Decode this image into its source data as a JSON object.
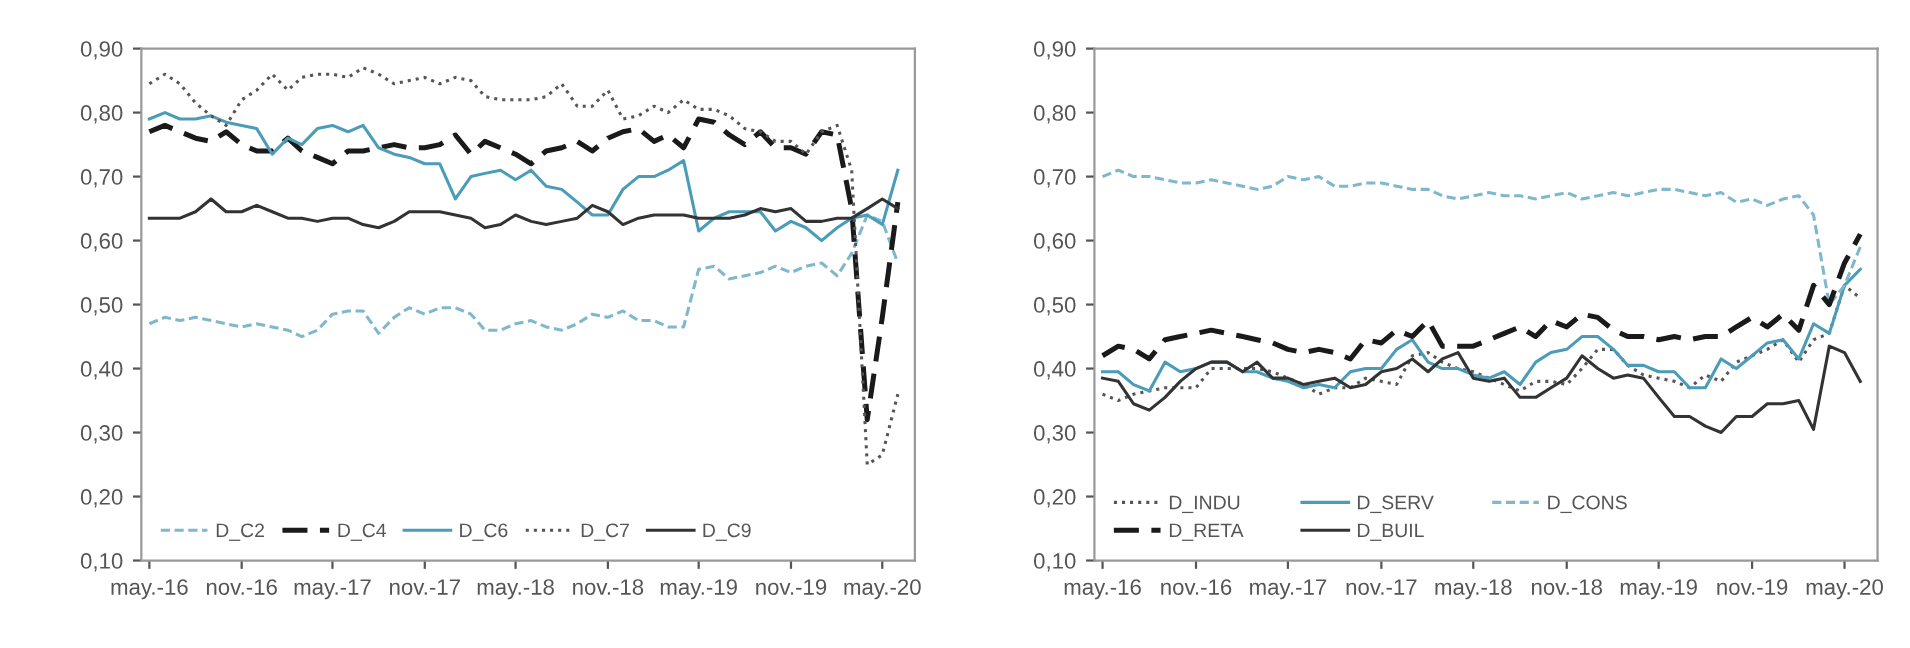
{
  "chart_data": [
    {
      "type": "line",
      "x": [
        "2016-05",
        "2016-06",
        "2016-07",
        "2016-08",
        "2016-09",
        "2016-10",
        "2016-11",
        "2016-12",
        "2017-01",
        "2017-02",
        "2017-03",
        "2017-04",
        "2017-05",
        "2017-06",
        "2017-07",
        "2017-08",
        "2017-09",
        "2017-10",
        "2017-11",
        "2017-12",
        "2018-01",
        "2018-02",
        "2018-03",
        "2018-04",
        "2018-05",
        "2018-06",
        "2018-07",
        "2018-08",
        "2018-09",
        "2018-10",
        "2018-11",
        "2018-12",
        "2019-01",
        "2019-02",
        "2019-03",
        "2019-04",
        "2019-05",
        "2019-06",
        "2019-07",
        "2019-08",
        "2019-09",
        "2019-10",
        "2019-11",
        "2019-12",
        "2020-01",
        "2020-02",
        "2020-03",
        "2020-04",
        "2020-05",
        "2020-06"
      ],
      "xlim": [
        "2016-04-15",
        "2020-07-05"
      ],
      "xticks": [
        {
          "value": "2016-05",
          "label": "may.-16"
        },
        {
          "value": "2016-11",
          "label": "nov.-16"
        },
        {
          "value": "2017-05",
          "label": "may.-17"
        },
        {
          "value": "2017-11",
          "label": "nov.-17"
        },
        {
          "value": "2018-05",
          "label": "may.-18"
        },
        {
          "value": "2018-11",
          "label": "nov.-18"
        },
        {
          "value": "2019-05",
          "label": "may.-19"
        },
        {
          "value": "2019-11",
          "label": "nov.-19"
        },
        {
          "value": "2020-05",
          "label": "may.-20"
        }
      ],
      "ylim": [
        0.1,
        0.9
      ],
      "yticks": [
        {
          "value": 0.1,
          "label": "0,10"
        },
        {
          "value": 0.2,
          "label": "0,20"
        },
        {
          "value": 0.3,
          "label": "0,30"
        },
        {
          "value": 0.4,
          "label": "0,40"
        },
        {
          "value": 0.5,
          "label": "0,50"
        },
        {
          "value": 0.6,
          "label": "0,60"
        },
        {
          "value": 0.7,
          "label": "0,70"
        },
        {
          "value": 0.8,
          "label": "0,80"
        },
        {
          "value": 0.9,
          "label": "0,90"
        }
      ],
      "grid": false,
      "legend": "bottom left",
      "series": [
        {
          "name": "D_C2",
          "color": "#7fb8cc",
          "line_style": "dashed",
          "values": [
            0.47,
            0.48,
            0.475,
            0.48,
            0.475,
            0.47,
            0.465,
            0.47,
            0.465,
            0.46,
            0.45,
            0.46,
            0.485,
            0.49,
            0.49,
            0.455,
            0.48,
            0.495,
            0.485,
            0.495,
            0.495,
            0.485,
            0.46,
            0.46,
            0.47,
            0.475,
            0.465,
            0.46,
            0.47,
            0.485,
            0.48,
            0.49,
            0.475,
            0.475,
            0.465,
            0.465,
            0.555,
            0.56,
            0.54,
            0.545,
            0.55,
            0.56,
            0.55,
            0.56,
            0.565,
            0.545,
            0.58,
            0.64,
            0.63,
            0.565
          ]
        },
        {
          "name": "D_C4",
          "color": "#1a1a1a",
          "line_style": "dashed",
          "values": [
            0.77,
            0.78,
            0.77,
            0.76,
            0.755,
            0.77,
            0.75,
            0.74,
            0.74,
            0.76,
            0.74,
            0.73,
            0.72,
            0.74,
            0.74,
            0.745,
            0.75,
            0.745,
            0.745,
            0.75,
            0.765,
            0.735,
            0.755,
            0.745,
            0.735,
            0.72,
            0.74,
            0.745,
            0.755,
            0.74,
            0.76,
            0.77,
            0.775,
            0.755,
            0.765,
            0.745,
            0.79,
            0.785,
            0.765,
            0.75,
            0.77,
            0.745,
            0.745,
            0.735,
            0.77,
            0.765,
            0.65,
            0.32,
            0.48,
            0.66
          ]
        },
        {
          "name": "D_C6",
          "color": "#4a9cb8",
          "line_style": "solid",
          "values": [
            0.79,
            0.8,
            0.79,
            0.79,
            0.795,
            0.785,
            0.78,
            0.775,
            0.735,
            0.76,
            0.75,
            0.775,
            0.78,
            0.77,
            0.78,
            0.745,
            0.735,
            0.73,
            0.72,
            0.72,
            0.665,
            0.7,
            0.705,
            0.71,
            0.695,
            0.71,
            0.685,
            0.68,
            0.66,
            0.64,
            0.64,
            0.68,
            0.7,
            0.7,
            0.71,
            0.725,
            0.615,
            0.635,
            0.645,
            0.645,
            0.645,
            0.615,
            0.63,
            0.62,
            0.6,
            0.62,
            0.635,
            0.64,
            0.625,
            0.71
          ]
        },
        {
          "name": "D_C7",
          "color": "#555555",
          "line_style": "dotted",
          "values": [
            0.845,
            0.86,
            0.845,
            0.815,
            0.795,
            0.78,
            0.82,
            0.835,
            0.86,
            0.835,
            0.855,
            0.86,
            0.86,
            0.855,
            0.87,
            0.86,
            0.845,
            0.85,
            0.855,
            0.845,
            0.855,
            0.85,
            0.825,
            0.82,
            0.82,
            0.82,
            0.825,
            0.845,
            0.81,
            0.81,
            0.835,
            0.79,
            0.795,
            0.81,
            0.8,
            0.82,
            0.805,
            0.805,
            0.795,
            0.775,
            0.77,
            0.755,
            0.755,
            0.735,
            0.77,
            0.78,
            0.71,
            0.25,
            0.265,
            0.36
          ]
        },
        {
          "name": "D_C9",
          "color": "#333333",
          "line_style": "solid",
          "values": [
            0.635,
            0.635,
            0.635,
            0.645,
            0.665,
            0.645,
            0.645,
            0.655,
            0.645,
            0.635,
            0.635,
            0.63,
            0.635,
            0.635,
            0.625,
            0.62,
            0.63,
            0.645,
            0.645,
            0.645,
            0.64,
            0.635,
            0.62,
            0.625,
            0.64,
            0.63,
            0.625,
            0.63,
            0.635,
            0.655,
            0.645,
            0.625,
            0.635,
            0.64,
            0.64,
            0.64,
            0.635,
            0.635,
            0.635,
            0.64,
            0.65,
            0.645,
            0.65,
            0.63,
            0.63,
            0.635,
            0.635,
            0.65,
            0.665,
            0.65
          ]
        }
      ]
    },
    {
      "type": "line",
      "x": [
        "2016-05",
        "2016-06",
        "2016-07",
        "2016-08",
        "2016-09",
        "2016-10",
        "2016-11",
        "2016-12",
        "2017-01",
        "2017-02",
        "2017-03",
        "2017-04",
        "2017-05",
        "2017-06",
        "2017-07",
        "2017-08",
        "2017-09",
        "2017-10",
        "2017-11",
        "2017-12",
        "2018-01",
        "2018-02",
        "2018-03",
        "2018-04",
        "2018-05",
        "2018-06",
        "2018-07",
        "2018-08",
        "2018-09",
        "2018-10",
        "2018-11",
        "2018-12",
        "2019-01",
        "2019-02",
        "2019-03",
        "2019-04",
        "2019-05",
        "2019-06",
        "2019-07",
        "2019-08",
        "2019-09",
        "2019-10",
        "2019-11",
        "2019-12",
        "2020-01",
        "2020-02",
        "2020-03",
        "2020-04",
        "2020-05",
        "2020-06"
      ],
      "xlim": [
        "2016-04-15",
        "2020-07-05"
      ],
      "xticks": [
        {
          "value": "2016-05",
          "label": "may.-16"
        },
        {
          "value": "2016-11",
          "label": "nov.-16"
        },
        {
          "value": "2017-05",
          "label": "may.-17"
        },
        {
          "value": "2017-11",
          "label": "nov.-17"
        },
        {
          "value": "2018-05",
          "label": "may.-18"
        },
        {
          "value": "2018-11",
          "label": "nov.-18"
        },
        {
          "value": "2019-05",
          "label": "may.-19"
        },
        {
          "value": "2019-11",
          "label": "nov.-19"
        },
        {
          "value": "2020-05",
          "label": "may.-20"
        }
      ],
      "ylim": [
        0.1,
        0.9
      ],
      "yticks": [
        {
          "value": 0.1,
          "label": "0,10"
        },
        {
          "value": 0.2,
          "label": "0,20"
        },
        {
          "value": 0.3,
          "label": "0,30"
        },
        {
          "value": 0.4,
          "label": "0,40"
        },
        {
          "value": 0.5,
          "label": "0,50"
        },
        {
          "value": 0.6,
          "label": "0,60"
        },
        {
          "value": 0.7,
          "label": "0,70"
        },
        {
          "value": 0.8,
          "label": "0,80"
        },
        {
          "value": 0.9,
          "label": "0,90"
        }
      ],
      "grid": false,
      "legend": "bottom left",
      "series": [
        {
          "name": "D_INDU",
          "color": "#555555",
          "line_style": "dotted",
          "values": [
            0.36,
            0.35,
            0.36,
            0.365,
            0.37,
            0.37,
            0.37,
            0.4,
            0.4,
            0.4,
            0.4,
            0.395,
            0.385,
            0.375,
            0.36,
            0.37,
            0.37,
            0.385,
            0.38,
            0.375,
            0.42,
            0.425,
            0.41,
            0.4,
            0.395,
            0.385,
            0.375,
            0.365,
            0.38,
            0.38,
            0.375,
            0.4,
            0.43,
            0.43,
            0.405,
            0.39,
            0.385,
            0.38,
            0.37,
            0.39,
            0.38,
            0.41,
            0.42,
            0.43,
            0.445,
            0.41,
            0.445,
            0.455,
            0.53,
            0.51
          ]
        },
        {
          "name": "D_SERV",
          "color": "#4a9cb8",
          "line_style": "solid",
          "values": [
            0.395,
            0.395,
            0.375,
            0.365,
            0.41,
            0.395,
            0.4,
            0.41,
            0.41,
            0.395,
            0.395,
            0.385,
            0.38,
            0.37,
            0.375,
            0.37,
            0.395,
            0.4,
            0.4,
            0.43,
            0.445,
            0.41,
            0.4,
            0.4,
            0.39,
            0.385,
            0.395,
            0.375,
            0.41,
            0.425,
            0.43,
            0.45,
            0.45,
            0.43,
            0.405,
            0.405,
            0.395,
            0.395,
            0.37,
            0.37,
            0.415,
            0.4,
            0.42,
            0.44,
            0.445,
            0.415,
            0.47,
            0.455,
            0.53,
            0.555
          ]
        },
        {
          "name": "D_CONS",
          "color": "#7fb8cc",
          "line_style": "dashed",
          "values": [
            0.7,
            0.71,
            0.7,
            0.7,
            0.695,
            0.69,
            0.69,
            0.695,
            0.69,
            0.685,
            0.68,
            0.685,
            0.7,
            0.695,
            0.7,
            0.685,
            0.685,
            0.69,
            0.69,
            0.685,
            0.68,
            0.68,
            0.67,
            0.665,
            0.67,
            0.675,
            0.67,
            0.67,
            0.665,
            0.67,
            0.675,
            0.665,
            0.67,
            0.675,
            0.67,
            0.675,
            0.68,
            0.68,
            0.675,
            0.67,
            0.675,
            0.66,
            0.665,
            0.655,
            0.665,
            0.67,
            0.64,
            0.5,
            0.53,
            0.59
          ]
        },
        {
          "name": "D_RETA",
          "color": "#1a1a1a",
          "line_style": "dashed",
          "values": [
            0.42,
            0.435,
            0.43,
            0.415,
            0.445,
            0.45,
            0.455,
            0.46,
            0.455,
            0.45,
            0.445,
            0.44,
            0.43,
            0.425,
            0.43,
            0.425,
            0.415,
            0.445,
            0.44,
            0.46,
            0.45,
            0.475,
            0.435,
            0.435,
            0.435,
            0.445,
            0.455,
            0.465,
            0.45,
            0.475,
            0.465,
            0.485,
            0.48,
            0.46,
            0.45,
            0.45,
            0.445,
            0.45,
            0.445,
            0.45,
            0.45,
            0.465,
            0.48,
            0.465,
            0.485,
            0.46,
            0.53,
            0.5,
            0.565,
            0.61
          ]
        },
        {
          "name": "D_BUIL",
          "color": "#333333",
          "line_style": "solid",
          "values": [
            0.385,
            0.38,
            0.345,
            0.335,
            0.355,
            0.38,
            0.4,
            0.41,
            0.41,
            0.395,
            0.41,
            0.385,
            0.385,
            0.375,
            0.38,
            0.385,
            0.37,
            0.375,
            0.395,
            0.4,
            0.415,
            0.395,
            0.415,
            0.425,
            0.385,
            0.38,
            0.385,
            0.355,
            0.355,
            0.37,
            0.385,
            0.42,
            0.4,
            0.385,
            0.39,
            0.385,
            0.355,
            0.325,
            0.325,
            0.31,
            0.3,
            0.325,
            0.325,
            0.345,
            0.345,
            0.35,
            0.305,
            0.435,
            0.425,
            0.38
          ]
        }
      ]
    }
  ]
}
